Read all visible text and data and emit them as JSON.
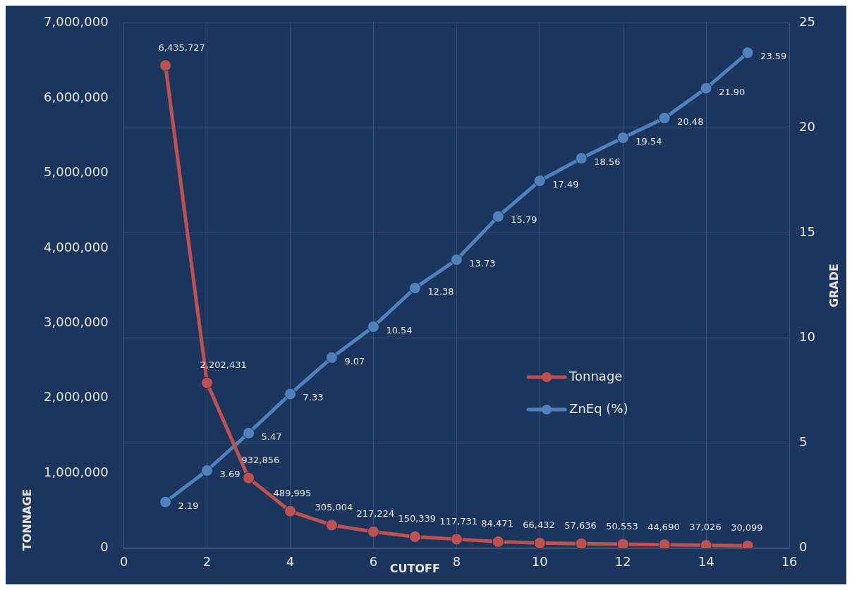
{
  "chart_data": {
    "type": "line",
    "xlabel": "CUTOFF",
    "ylabel": "TONNAGE",
    "y2label": "GRADE",
    "x": [
      1,
      2,
      3,
      4,
      5,
      6,
      7,
      8,
      9,
      10,
      11,
      12,
      13,
      14,
      15
    ],
    "series": [
      {
        "name": "Tonnage",
        "color": "#c0504d",
        "values": [
          6435727,
          2202431,
          932856,
          489995,
          305004,
          217224,
          150339,
          117731,
          84471,
          66432,
          57636,
          50553,
          44690,
          37026,
          30099
        ],
        "value_labels": [
          "6,435,727",
          "2,202,431",
          "932,856",
          "489,995",
          "305,004",
          "217,224",
          "150,339",
          "117,731",
          "84,471",
          "66,432",
          "57,636",
          "50,553",
          "44,690",
          "37,026",
          "30,099"
        ]
      },
      {
        "name": "ZnEq (%)",
        "color": "#4f81bd",
        "axis": "y2",
        "values": [
          2.19,
          3.69,
          5.47,
          7.33,
          9.07,
          10.54,
          12.38,
          13.73,
          15.79,
          17.49,
          18.56,
          19.54,
          20.48,
          21.9,
          23.59
        ],
        "value_labels": [
          "2.19",
          "3.69",
          "5.47",
          "7.33",
          "9.07",
          "10.54",
          "12.38",
          "13.73",
          "15.79",
          "17.49",
          "18.56",
          "19.54",
          "20.48",
          "21.90",
          "23.59"
        ]
      }
    ],
    "xlim": [
      0,
      16
    ],
    "xticks": [
      0,
      2,
      4,
      6,
      8,
      10,
      12,
      14,
      16
    ],
    "ylim": [
      0,
      7000000
    ],
    "yticks": [
      0,
      {
        "value": 1000000,
        "label": "1,000,000"
      },
      {
        "value": 2000000,
        "label": "2,000,000"
      },
      {
        "value": 3000000,
        "label": "3,000,000"
      },
      {
        "value": 4000000,
        "label": "4,000,000"
      },
      {
        "value": 5000000,
        "label": "5,000,000"
      },
      {
        "value": 6000000,
        "label": "6,000,000"
      },
      {
        "value": 7000000,
        "label": "7,000,000"
      }
    ],
    "y2lim": [
      0,
      25
    ],
    "y2ticks": [
      0,
      5,
      10,
      15,
      20,
      25
    ],
    "grid": true,
    "legend": "right",
    "marker": "circle",
    "line_style": "solid"
  }
}
